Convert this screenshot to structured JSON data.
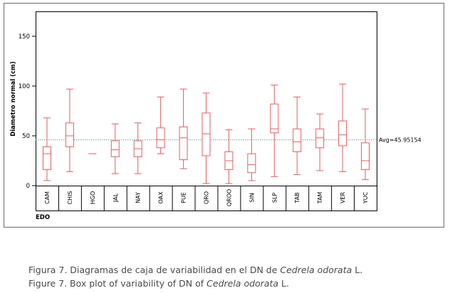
{
  "chart_data": {
    "type": "boxplot",
    "ylabel": "Diametro normal (cm)",
    "xlabel": "EDO",
    "ylim": [
      0,
      175
    ],
    "yticks": [
      0,
      50,
      100,
      150
    ],
    "grid": false,
    "reference_line": {
      "label": "Avg=45.95154",
      "value": 45.95154
    },
    "colors": {
      "box": "#e06060",
      "ref_line": "#7a9a9a",
      "axis": "#000000"
    },
    "categories": [
      "CAM",
      "CHIS",
      "HGO",
      "JAL",
      "NAY",
      "OAX",
      "PUE",
      "QRO",
      "QROO",
      "SIN",
      "SLP",
      "TAB",
      "TAM",
      "VER",
      "YUC"
    ],
    "boxes": [
      {
        "category": "CAM",
        "min": 5,
        "q1": 16,
        "median": 32,
        "q3": 39,
        "max": 68
      },
      {
        "category": "CHIS",
        "min": 14,
        "q1": 39,
        "median": 50,
        "q3": 63,
        "max": 97
      },
      {
        "category": "HGO",
        "min": 32,
        "q1": 32,
        "median": 32,
        "q3": 32,
        "max": 32
      },
      {
        "category": "JAL",
        "min": 12,
        "q1": 29,
        "median": 36,
        "q3": 45,
        "max": 62
      },
      {
        "category": "NAY",
        "min": 12,
        "q1": 29,
        "median": 37,
        "q3": 45,
        "max": 63
      },
      {
        "category": "OAX",
        "min": 32,
        "q1": 38,
        "median": 46,
        "q3": 58,
        "max": 89
      },
      {
        "category": "PUE",
        "min": 17,
        "q1": 26,
        "median": 48,
        "q3": 59,
        "max": 97
      },
      {
        "category": "QRO",
        "min": 2,
        "q1": 30,
        "median": 52,
        "q3": 73,
        "max": 93
      },
      {
        "category": "QROO",
        "min": 2,
        "q1": 16,
        "median": 25,
        "q3": 34,
        "max": 56
      },
      {
        "category": "SIN",
        "min": 5,
        "q1": 13,
        "median": 21,
        "q3": 32,
        "max": 57
      },
      {
        "category": "SLP",
        "min": 9,
        "q1": 53,
        "median": 57,
        "q3": 82,
        "max": 101
      },
      {
        "category": "TAB",
        "min": 11,
        "q1": 34,
        "median": 44,
        "q3": 57,
        "max": 89
      },
      {
        "category": "TAM",
        "min": 15,
        "q1": 38,
        "median": 48,
        "q3": 57,
        "max": 72
      },
      {
        "category": "VER",
        "min": 14,
        "q1": 40,
        "median": 51,
        "q3": 65,
        "max": 102
      },
      {
        "category": "YUC",
        "min": 6,
        "q1": 16,
        "median": 25,
        "q3": 43,
        "max": 77
      }
    ]
  },
  "caption": {
    "es_prefix": "Figura 7. Diagramas de caja de variabilidad en el DN de ",
    "es_species": "Cedrela odorata",
    "es_suffix": " L.",
    "en_prefix": "Figure 7. Box plot of variability of DN of ",
    "en_species": "Cedrela odorata",
    "en_suffix": " L."
  }
}
